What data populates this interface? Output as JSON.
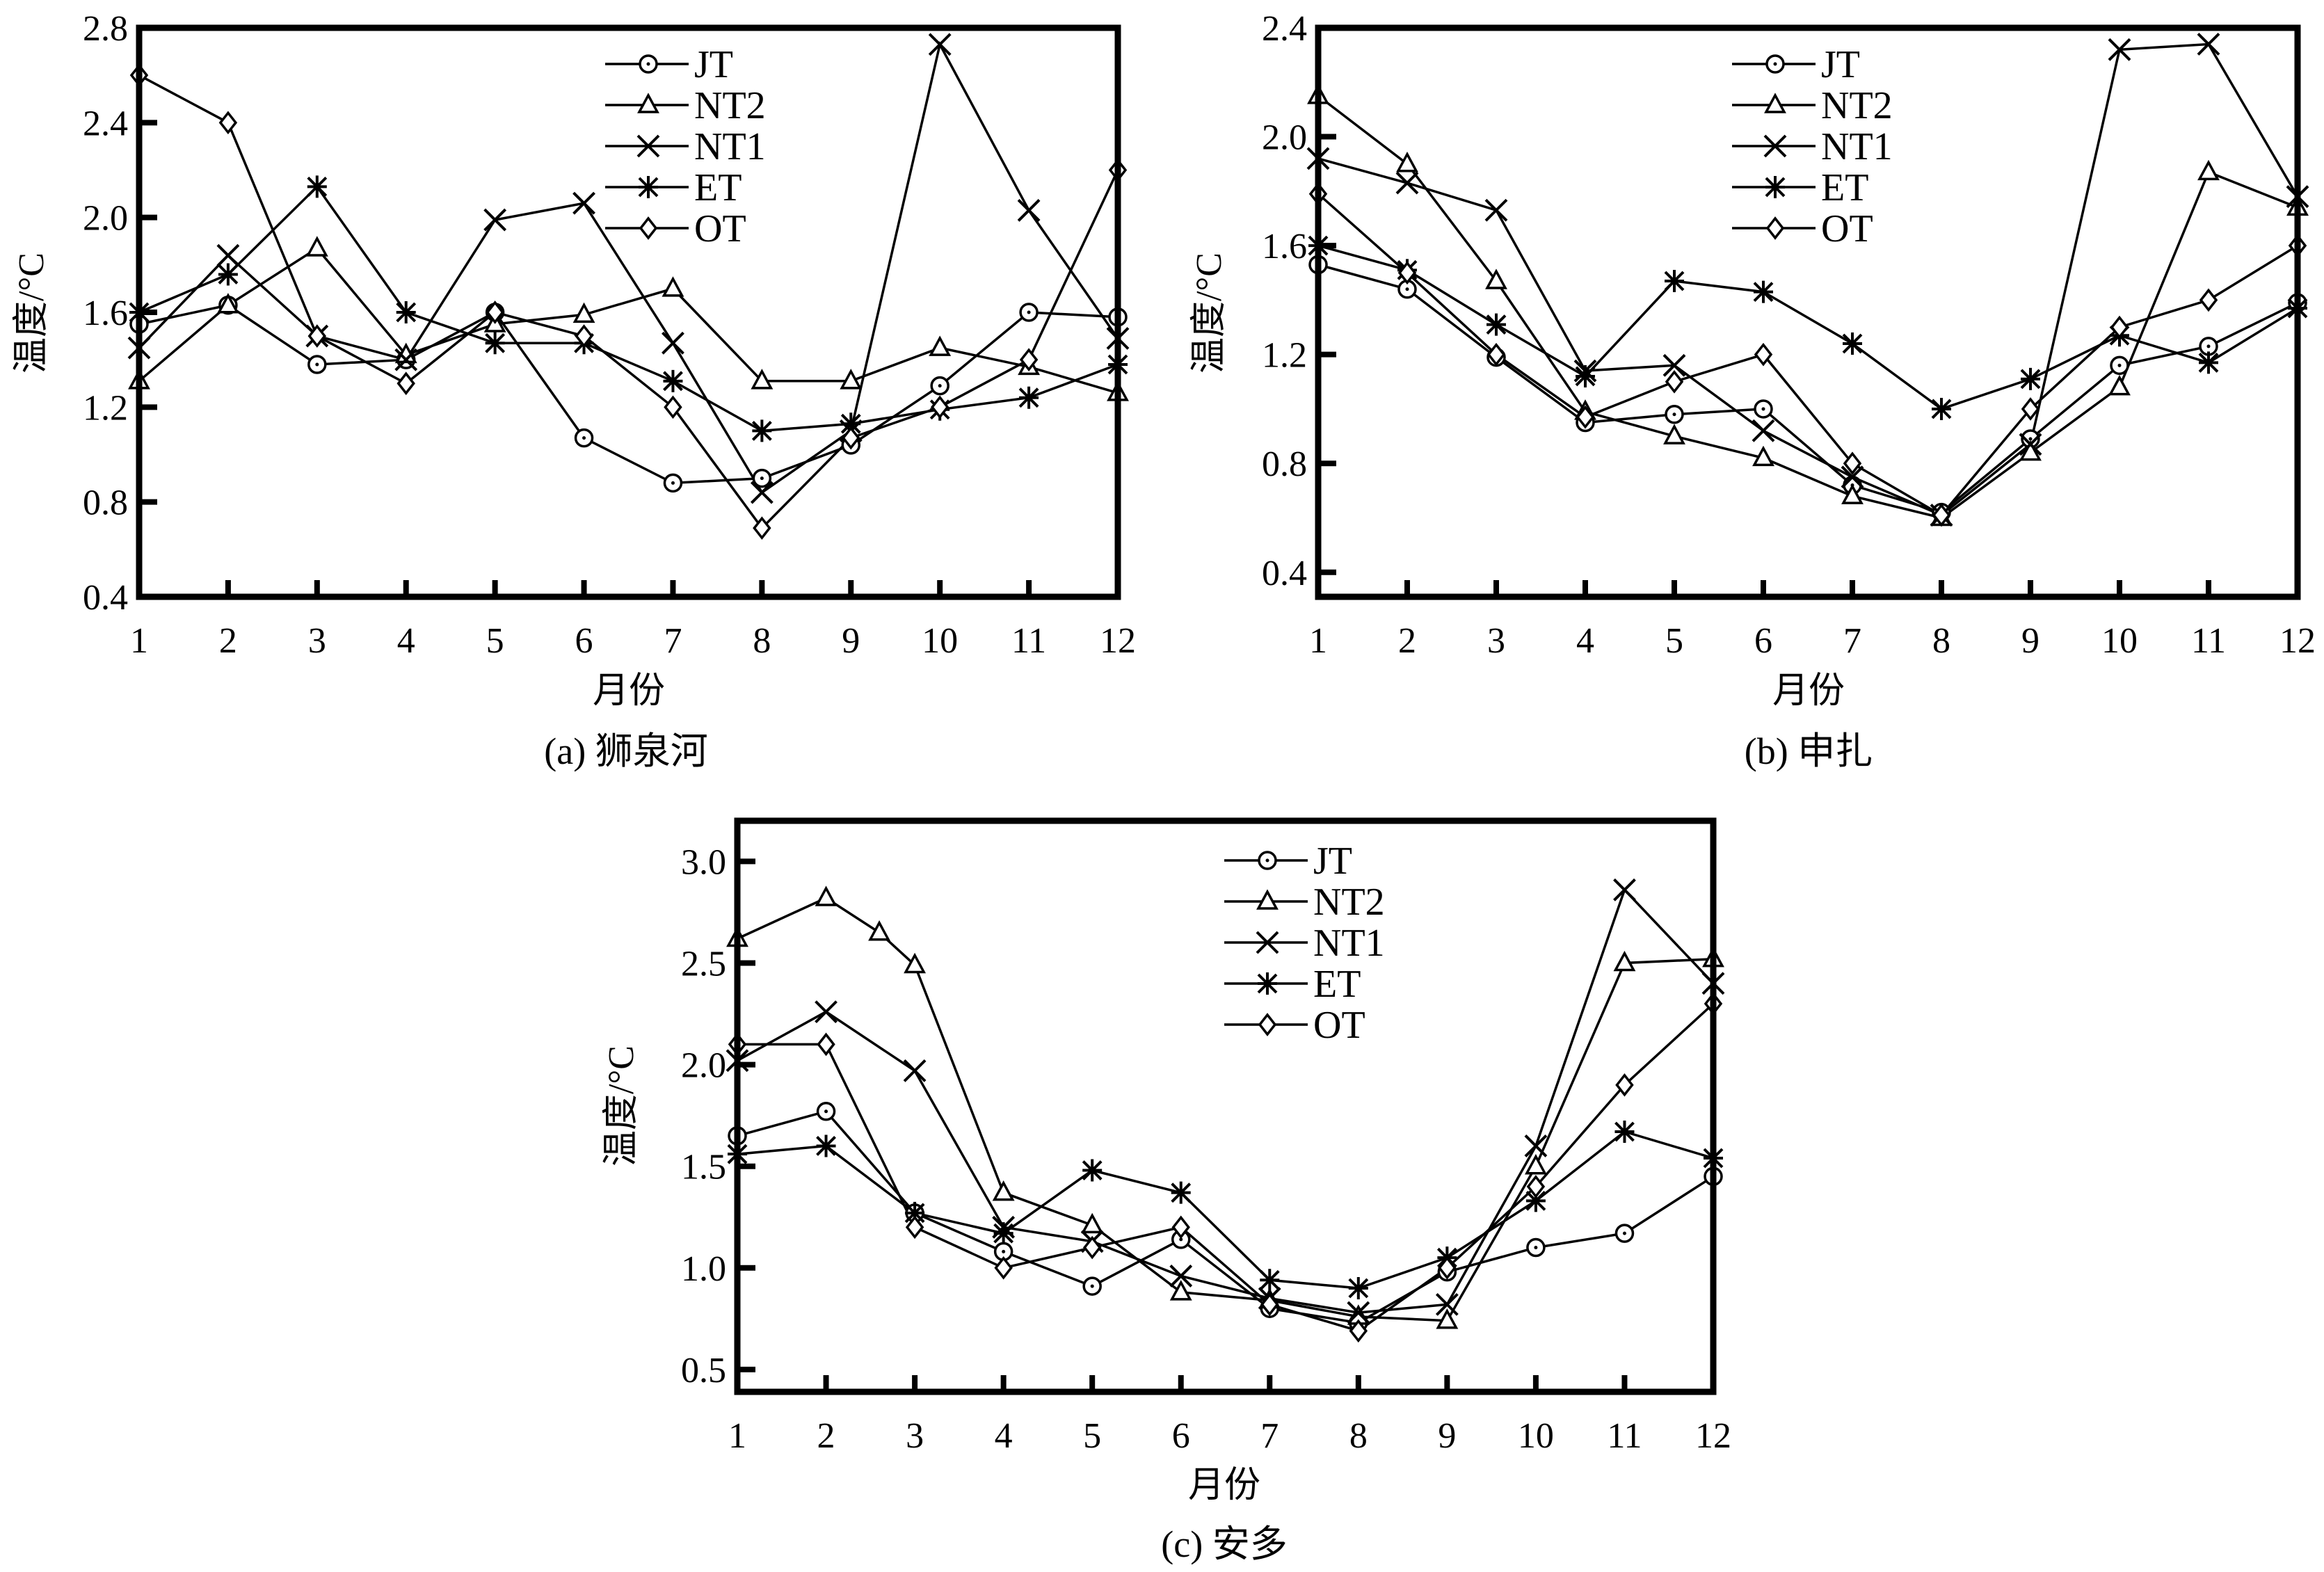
{
  "figure": {
    "marker_color": "#000000",
    "background": "#ffffff"
  },
  "chart_data": [
    {
      "id": "a",
      "type": "line",
      "title": "(a) 狮泉河",
      "xlabel": "月份",
      "ylabel": "温度/°C",
      "xlim": [
        1,
        12
      ],
      "ylim": [
        0.4,
        2.8
      ],
      "xticks": [
        1,
        2,
        3,
        4,
        5,
        6,
        7,
        8,
        9,
        10,
        11,
        12
      ],
      "yticks": [
        0.4,
        0.8,
        1.2,
        1.6,
        2.0,
        2.4,
        2.8
      ],
      "ytick_labels": [
        "0.4",
        "0.8",
        "1.2",
        "1.6",
        "2.0",
        "2.4",
        "2.8"
      ],
      "grid": false,
      "legend_position": "top-right",
      "series": [
        {
          "name": "JT",
          "marker": "circle",
          "x": [
            1,
            2,
            3,
            4,
            5,
            6,
            7,
            8,
            9,
            10,
            11,
            12
          ],
          "values": [
            1.55,
            1.63,
            1.38,
            1.4,
            1.6,
            1.07,
            0.88,
            0.9,
            1.04,
            1.29,
            1.6,
            1.58
          ]
        },
        {
          "name": "NT2",
          "marker": "triangle",
          "x": [
            1,
            2,
            3,
            4,
            5,
            6,
            7,
            8,
            9,
            10,
            11,
            12
          ],
          "values": [
            1.31,
            1.63,
            1.87,
            1.42,
            1.55,
            1.59,
            1.7,
            1.31,
            1.31,
            1.45,
            1.37,
            1.26
          ]
        },
        {
          "name": "NT1",
          "marker": "x",
          "x": [
            1,
            2,
            3,
            4,
            5,
            6,
            7,
            8,
            9,
            10,
            11,
            12
          ],
          "values": [
            1.45,
            1.84,
            1.5,
            1.4,
            1.99,
            2.06,
            1.47,
            0.84,
            1.1,
            2.73,
            2.03,
            1.49
          ]
        },
        {
          "name": "ET",
          "marker": "asterisk",
          "x": [
            1,
            2,
            3,
            4,
            5,
            6,
            7,
            8,
            9,
            10,
            11,
            12
          ],
          "values": [
            1.6,
            1.76,
            2.13,
            1.6,
            1.47,
            1.47,
            1.31,
            1.1,
            1.13,
            1.19,
            1.24,
            1.38
          ]
        },
        {
          "name": "OT",
          "marker": "diamond",
          "x": [
            1,
            2,
            3,
            4,
            5,
            6,
            7,
            8,
            9,
            10,
            11,
            12
          ],
          "values": [
            2.6,
            2.4,
            1.5,
            1.3,
            1.6,
            1.5,
            1.2,
            0.69,
            1.07,
            1.2,
            1.4,
            2.2
          ]
        }
      ]
    },
    {
      "id": "b",
      "type": "line",
      "title": "(b) 申扎",
      "xlabel": "月份",
      "ylabel": "温度/°C",
      "xlim": [
        1,
        12
      ],
      "ylim": [
        0.31,
        2.4
      ],
      "xticks": [
        1,
        2,
        3,
        4,
        5,
        6,
        7,
        8,
        9,
        10,
        11,
        12
      ],
      "yticks": [
        0.4,
        0.8,
        1.2,
        1.6,
        2.0,
        2.4
      ],
      "ytick_labels": [
        "0.4",
        "0.8",
        "1.2",
        "1.6",
        "2.0",
        "2.4"
      ],
      "grid": false,
      "legend_position": "top-right",
      "series": [
        {
          "name": "JT",
          "marker": "circle",
          "x": [
            1,
            2,
            3,
            4,
            5,
            6,
            7,
            8,
            9,
            10,
            11,
            12
          ],
          "values": [
            1.53,
            1.44,
            1.19,
            0.95,
            0.98,
            1.0,
            0.72,
            0.62,
            0.89,
            1.16,
            1.23,
            1.39
          ]
        },
        {
          "name": "NT2",
          "marker": "triangle",
          "x": [
            1,
            2,
            3,
            4,
            5,
            6,
            7,
            8,
            9,
            10,
            11,
            12
          ],
          "values": [
            2.15,
            1.9,
            1.47,
            0.99,
            0.9,
            0.82,
            0.68,
            0.6,
            0.84,
            1.08,
            1.87,
            1.74
          ]
        },
        {
          "name": "NT1",
          "marker": "x",
          "x": [
            1,
            2,
            3,
            4,
            5,
            6,
            7,
            8,
            9,
            10,
            11,
            12
          ],
          "values": [
            1.92,
            1.83,
            1.73,
            1.14,
            1.16,
            0.92,
            0.75,
            0.61,
            0.87,
            2.32,
            2.34,
            1.78
          ]
        },
        {
          "name": "ET",
          "marker": "asterisk",
          "x": [
            1,
            2,
            3,
            4,
            5,
            6,
            7,
            8,
            9,
            10,
            11,
            12
          ],
          "values": [
            1.6,
            1.51,
            1.31,
            1.12,
            1.47,
            1.43,
            1.24,
            1.0,
            1.11,
            1.27,
            1.17,
            1.37
          ]
        },
        {
          "name": "OT",
          "marker": "diamond",
          "x": [
            1,
            2,
            3,
            4,
            5,
            6,
            7,
            8,
            9,
            10,
            11,
            12
          ],
          "values": [
            1.79,
            1.5,
            1.2,
            0.97,
            1.1,
            1.2,
            0.8,
            0.61,
            1.0,
            1.3,
            1.4,
            1.6
          ]
        }
      ]
    },
    {
      "id": "c",
      "type": "line",
      "title": "(c) 安多",
      "xlabel": "月份",
      "ylabel": "温度/°C",
      "xlim": [
        1,
        12
      ],
      "ylim": [
        0.39,
        3.2
      ],
      "xticks": [
        1,
        2,
        3,
        4,
        5,
        6,
        7,
        8,
        9,
        10,
        11,
        12
      ],
      "yticks": [
        0.5,
        1.0,
        1.5,
        2.0,
        2.5,
        3.0
      ],
      "ytick_labels": [
        "0.5",
        "1.0",
        "1.5",
        "2.0",
        "2.5",
        "3.0"
      ],
      "grid": false,
      "legend_position": "top-right",
      "series": [
        {
          "name": "JT",
          "marker": "circle",
          "x": [
            1,
            2,
            3,
            4,
            5,
            6,
            7,
            8,
            9,
            10,
            11,
            12
          ],
          "values": [
            1.65,
            1.77,
            1.27,
            1.08,
            0.91,
            1.14,
            0.8,
            0.73,
            0.98,
            1.1,
            1.17,
            1.45
          ]
        },
        {
          "name": "NT2",
          "marker": "triangle",
          "x": [
            1,
            2,
            2.6,
            3,
            4,
            5,
            6,
            7,
            8,
            9,
            10,
            11,
            12
          ],
          "values": [
            2.62,
            2.82,
            2.65,
            2.49,
            1.37,
            1.21,
            0.88,
            0.84,
            0.76,
            0.74,
            1.5,
            2.5,
            2.52
          ]
        },
        {
          "name": "NT1",
          "marker": "x",
          "x": [
            1,
            2,
            3,
            4,
            5,
            6,
            7,
            8,
            9,
            10,
            11,
            12
          ],
          "values": [
            2.02,
            2.26,
            1.97,
            1.2,
            1.13,
            0.96,
            0.85,
            0.78,
            0.82,
            1.6,
            2.86,
            2.4
          ]
        },
        {
          "name": "ET",
          "marker": "asterisk",
          "x": [
            1,
            2,
            3,
            4,
            5,
            6,
            7,
            8,
            9,
            10,
            11,
            12
          ],
          "values": [
            1.56,
            1.6,
            1.27,
            1.17,
            1.48,
            1.37,
            0.94,
            0.9,
            1.05,
            1.33,
            1.67,
            1.54
          ]
        },
        {
          "name": "OT",
          "marker": "diamond",
          "x": [
            1,
            2,
            3,
            4,
            5,
            6,
            7,
            8,
            9,
            10,
            11,
            12
          ],
          "values": [
            2.1,
            2.1,
            1.2,
            1.0,
            1.1,
            1.2,
            0.82,
            0.69,
            1.0,
            1.4,
            1.9,
            2.3
          ]
        }
      ]
    }
  ]
}
